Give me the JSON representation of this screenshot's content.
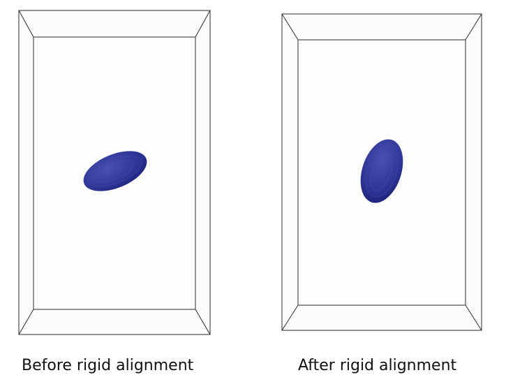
{
  "panels": [
    {
      "caption": "Before rigid alignment"
    },
    {
      "caption": "After rigid alignment"
    }
  ],
  "colors": {
    "background": "#ffffff",
    "box_face": "#fcfcfd",
    "box_edge": "#2b2b2b",
    "blob_fill": "#2f3596",
    "blob_dark": "#1f237a",
    "blob_light": "#4a50b0"
  }
}
